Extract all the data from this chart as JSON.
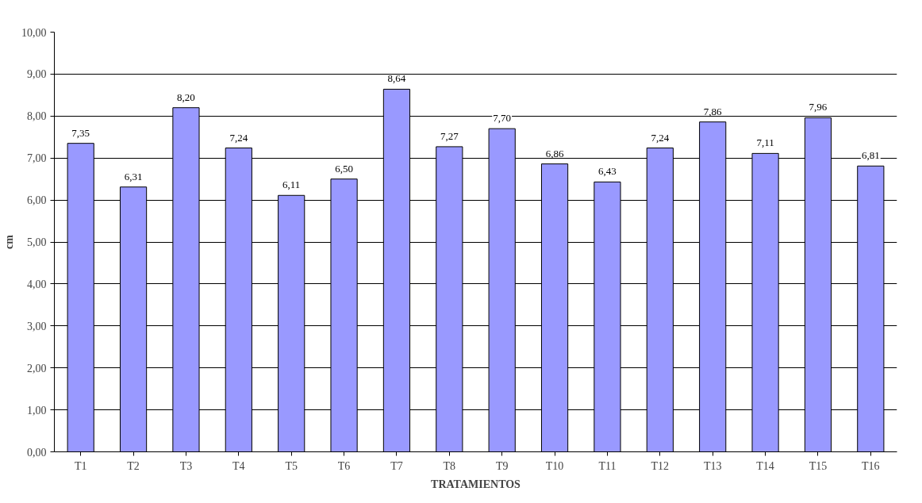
{
  "chart_data": {
    "type": "bar",
    "xlabel": "TRATAMIENTOS",
    "ylabel": "cm",
    "categories": [
      "T1",
      "T2",
      "T3",
      "T4",
      "T5",
      "T6",
      "T7",
      "T8",
      "T9",
      "T10",
      "T11",
      "T12",
      "T13",
      "T14",
      "T15",
      "T16"
    ],
    "values": [
      7.35,
      6.31,
      8.2,
      7.24,
      6.11,
      6.5,
      8.64,
      7.27,
      7.7,
      6.86,
      6.43,
      7.24,
      7.86,
      7.11,
      7.96,
      6.81
    ],
    "value_labels": [
      "7,35",
      "6,31",
      "8,20",
      "7,24",
      "6,11",
      "6,50",
      "8,64",
      "7,27",
      "7,70",
      "6,86",
      "6,43",
      "7,24",
      "7,86",
      "7,11",
      "7,96",
      "6,81"
    ],
    "color": "#9999ff",
    "ylim": [
      0,
      10
    ],
    "yticks": [
      {
        "value": 0,
        "label": "0,00"
      },
      {
        "value": 1,
        "label": "1,00"
      },
      {
        "value": 2,
        "label": "2,00"
      },
      {
        "value": 3,
        "label": "3,00"
      },
      {
        "value": 4,
        "label": "4,00"
      },
      {
        "value": 5,
        "label": "5,00"
      },
      {
        "value": 6,
        "label": "6,00"
      },
      {
        "value": 7,
        "label": "7,00"
      },
      {
        "value": 8,
        "label": "8,00"
      },
      {
        "value": 9,
        "label": "9,00"
      },
      {
        "value": 10,
        "label": "10,00"
      }
    ],
    "grid": "y"
  }
}
